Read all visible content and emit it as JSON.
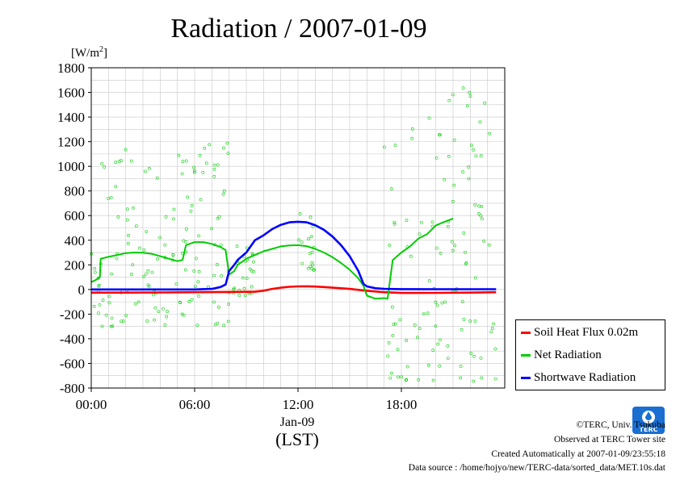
{
  "chart_data": {
    "type": "line",
    "title": "Radiation / 2007-01-09",
    "ylabel": "[W/m²]",
    "ylabel_base": "[W/m",
    "ylabel_sup": "2",
    "ylabel_close": "]",
    "xlabel_date": "Jan-09",
    "xlabel_unit": "(LST)",
    "ylim": [
      -800,
      1800
    ],
    "yticks": [
      1800,
      1600,
      1400,
      1200,
      1000,
      800,
      600,
      400,
      200,
      0,
      -200,
      -400,
      -600,
      -800
    ],
    "xlim": [
      0,
      24
    ],
    "xticks": [
      0,
      6,
      12,
      18
    ],
    "xtick_labels": [
      "00:00",
      "06:00",
      "12:00",
      "18:00"
    ],
    "grid": true,
    "legend_position": "right",
    "series": [
      {
        "name": "Soil Heat Flux 0.02m",
        "color": "#ff0000",
        "x": [
          0,
          2,
          4,
          6,
          8,
          9.5,
          10,
          10.5,
          11,
          11.5,
          12,
          12.5,
          13,
          13.5,
          14,
          14.5,
          15,
          15.5,
          16,
          17,
          18,
          20,
          22,
          23.5
        ],
        "values": [
          -25,
          -25,
          -24,
          -22,
          -20,
          -18,
          -10,
          5,
          15,
          22,
          25,
          26,
          24,
          20,
          15,
          10,
          5,
          -3,
          -10,
          -22,
          -28,
          -27,
          -25,
          -22
        ]
      },
      {
        "name": "Net Radiation",
        "color": "#00cc00",
        "x": [
          0,
          0.3,
          0.5,
          0.55,
          1.0,
          1.5,
          2.0,
          2.5,
          3.0,
          3.5,
          4.0,
          4.5,
          5.0,
          5.3,
          5.5,
          6.0,
          6.5,
          7.0,
          7.5,
          7.8,
          8.0,
          8.3,
          8.5,
          9.0,
          9.5,
          10.0,
          10.5,
          11.0,
          11.5,
          12.0,
          12.5,
          13.0,
          13.5,
          14.0,
          14.5,
          15.0,
          15.5,
          15.8,
          16.0,
          16.5,
          17.0,
          17.2,
          17.5,
          18.0,
          18.5,
          19.0,
          19.5,
          20.0,
          20.5,
          21.0
        ],
        "values": [
          60,
          80,
          100,
          250,
          265,
          280,
          295,
          300,
          298,
          290,
          270,
          250,
          230,
          240,
          360,
          385,
          385,
          370,
          345,
          320,
          120,
          150,
          200,
          250,
          280,
          310,
          330,
          350,
          358,
          360,
          352,
          330,
          300,
          262,
          215,
          160,
          90,
          30,
          -50,
          -75,
          -70,
          -75,
          240,
          300,
          350,
          415,
          450,
          520,
          550,
          575
        ]
      },
      {
        "name": "Shortwave Radiation",
        "color": "#0000ff",
        "x": [
          0,
          4,
          6,
          7.0,
          7.5,
          7.8,
          8.0,
          8.3,
          8.5,
          9.0,
          9.5,
          10.0,
          10.5,
          11.0,
          11.5,
          12.0,
          12.5,
          13.0,
          13.5,
          14.0,
          14.5,
          15.0,
          15.5,
          15.8,
          16.0,
          16.5,
          17.0,
          18.0,
          20.0,
          22.0,
          23.5
        ],
        "values": [
          0,
          0,
          0,
          5,
          20,
          40,
          150,
          200,
          240,
          300,
          400,
          440,
          490,
          525,
          545,
          550,
          545,
          522,
          485,
          430,
          360,
          270,
          150,
          45,
          25,
          10,
          5,
          3,
          2,
          2,
          2
        ]
      }
    ]
  },
  "footer": {
    "copyright": "©TERC, Univ. Tsukuba",
    "observed": "Observed at TERC Tower site",
    "created": "Created Automatically at 2007-01-09/23:55:18",
    "source": "Data source : /home/hojyo/new/TERC-data/sorted_data/MET.10s.dat"
  },
  "logo": {
    "text": "TERC",
    "color": "#1a6fd1"
  }
}
